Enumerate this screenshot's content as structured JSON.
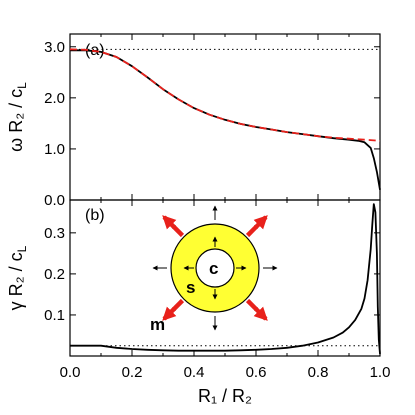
{
  "chart_data": [
    {
      "panel": "(a)",
      "type": "line",
      "xlabel": "R₁ / R₂",
      "ylabel": "ω R₂ / c_L",
      "xlim": [
        0.0,
        1.0
      ],
      "ylim": [
        0.0,
        3.25
      ],
      "xticks": [
        "0.0",
        "0.2",
        "0.4",
        "0.6",
        "0.8",
        "1.0"
      ],
      "yticks": [
        "0.0",
        "1.0",
        "2.0",
        "3.0"
      ],
      "y_tick_values": [
        0.0,
        1.0,
        2.0,
        3.0
      ],
      "reference_line": {
        "style": "dotted",
        "color": "#000000",
        "y": 2.95
      },
      "series": [
        {
          "style": "solid",
          "color": "#000000",
          "x": [
            0.0,
            0.05,
            0.1,
            0.15,
            0.2,
            0.25,
            0.3,
            0.35,
            0.4,
            0.45,
            0.5,
            0.55,
            0.6,
            0.65,
            0.7,
            0.75,
            0.8,
            0.85,
            0.9,
            0.93,
            0.95,
            0.97,
            0.98,
            0.99,
            1.0
          ],
          "y": [
            2.93,
            2.93,
            2.9,
            2.8,
            2.62,
            2.4,
            2.17,
            1.97,
            1.8,
            1.67,
            1.57,
            1.49,
            1.43,
            1.38,
            1.33,
            1.29,
            1.25,
            1.21,
            1.18,
            1.16,
            1.13,
            1.02,
            0.82,
            0.55,
            0.2
          ]
        },
        {
          "style": "dashed",
          "color": "#e8211b",
          "x": [
            0.0,
            0.05,
            0.1,
            0.15,
            0.2,
            0.25,
            0.3,
            0.35,
            0.4,
            0.45,
            0.5,
            0.55,
            0.6,
            0.65,
            0.7,
            0.75,
            0.8,
            0.85,
            0.9,
            0.95,
            1.0
          ],
          "y": [
            2.95,
            2.94,
            2.9,
            2.8,
            2.62,
            2.4,
            2.17,
            1.97,
            1.8,
            1.67,
            1.57,
            1.49,
            1.43,
            1.38,
            1.33,
            1.29,
            1.25,
            1.22,
            1.2,
            1.18,
            1.16
          ]
        }
      ]
    },
    {
      "panel": "(b)",
      "type": "line",
      "xlabel": "R₁ / R₂",
      "ylabel": "γ R₂ / c_L",
      "xlim": [
        0.0,
        1.0
      ],
      "ylim": [
        0.0,
        0.38
      ],
      "xticks": [
        "0.0",
        "0.2",
        "0.4",
        "0.6",
        "0.8",
        "1.0"
      ],
      "yticks": [
        "0.1",
        "0.2",
        "0.3"
      ],
      "y_tick_values": [
        0.1,
        0.2,
        0.3
      ],
      "reference_line": {
        "style": "dotted",
        "color": "#000000",
        "y": 0.025
      },
      "series": [
        {
          "style": "solid",
          "color": "#000000",
          "x": [
            0.0,
            0.05,
            0.1,
            0.15,
            0.2,
            0.25,
            0.3,
            0.35,
            0.4,
            0.45,
            0.5,
            0.55,
            0.6,
            0.65,
            0.7,
            0.75,
            0.8,
            0.85,
            0.88,
            0.9,
            0.92,
            0.94,
            0.95,
            0.96,
            0.97,
            0.975,
            0.98,
            0.985,
            0.99,
            0.993,
            0.996,
            1.0
          ],
          "y": [
            0.025,
            0.025,
            0.025,
            0.02,
            0.017,
            0.015,
            0.014,
            0.013,
            0.013,
            0.013,
            0.013,
            0.014,
            0.015,
            0.017,
            0.02,
            0.025,
            0.033,
            0.045,
            0.057,
            0.07,
            0.088,
            0.115,
            0.14,
            0.185,
            0.26,
            0.32,
            0.37,
            0.35,
            0.25,
            0.12,
            0.04,
            0.005
          ]
        }
      ],
      "inset": {
        "labels": [
          "c",
          "s",
          "m"
        ],
        "shell_color": "#ffff33",
        "arrow_color": "#e8211b"
      }
    }
  ]
}
